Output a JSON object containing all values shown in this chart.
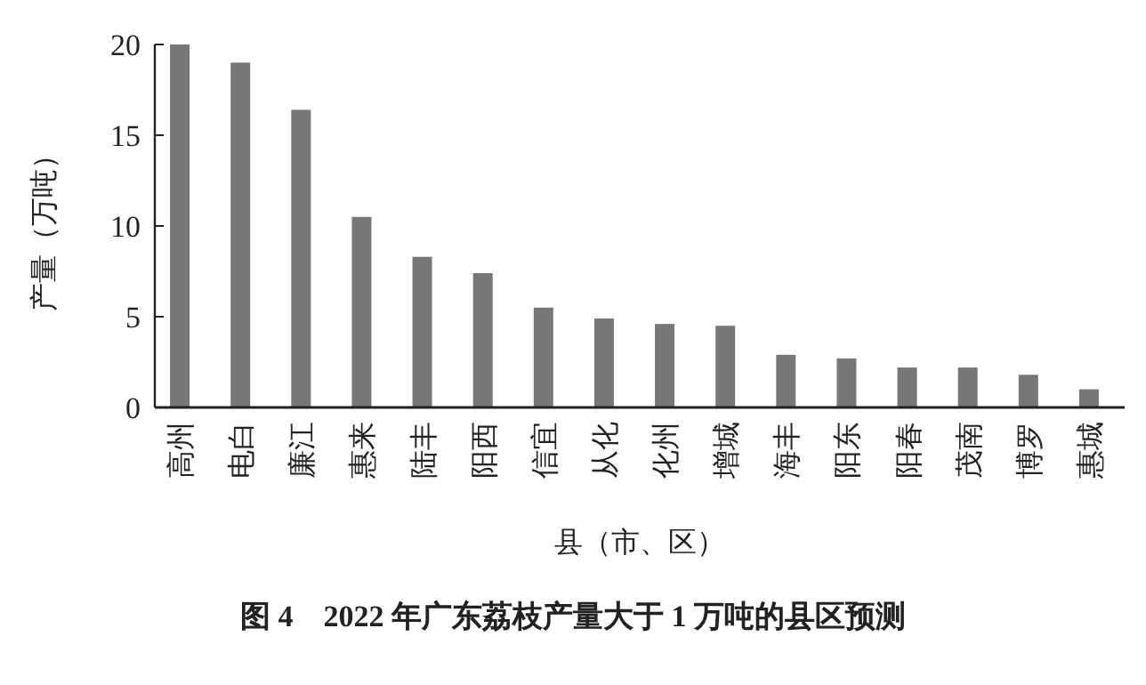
{
  "chart_data": {
    "type": "bar",
    "title": "图 4　2022 年广东荔枝产量大于 1 万吨的县区预测",
    "xlabel": "县（市、区）",
    "ylabel": "产量（万吨）",
    "categories": [
      "高州",
      "电白",
      "廉江",
      "惠来",
      "陆丰",
      "阳西",
      "信宜",
      "从化",
      "化州",
      "增城",
      "海丰",
      "阳东",
      "阳春",
      "茂南",
      "博罗",
      "惠城"
    ],
    "values": [
      20.0,
      19.0,
      16.4,
      10.5,
      8.3,
      7.4,
      5.5,
      4.9,
      4.6,
      4.5,
      2.9,
      2.7,
      2.2,
      2.2,
      1.8,
      1.0
    ],
    "color": "#777777",
    "ylim": [
      0,
      20
    ],
    "yticks": [
      0,
      5,
      10,
      15,
      20
    ]
  }
}
